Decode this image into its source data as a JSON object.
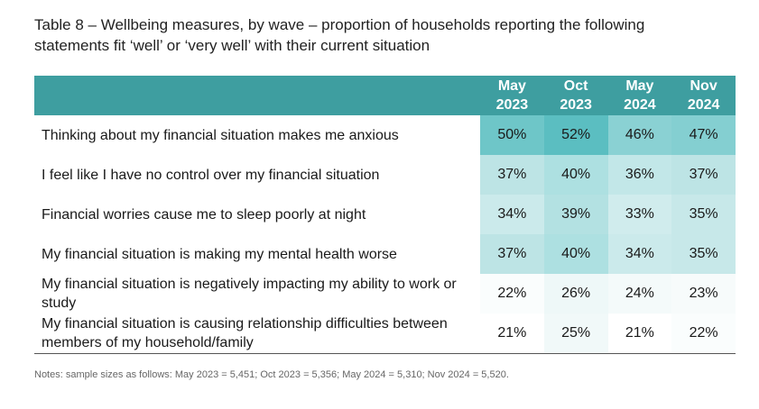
{
  "title": {
    "line1": "Table 8 – Wellbeing measures, by wave – proportion of households reporting the following",
    "line2": "statements fit ‘well’ or ‘very well’ with their current situation"
  },
  "table": {
    "header_color": "#3e9ea0",
    "columns": [
      {
        "month": "May",
        "year": "2023"
      },
      {
        "month": "Oct",
        "year": "2023"
      },
      {
        "month": "May",
        "year": "2024"
      },
      {
        "month": "Nov",
        "year": "2024"
      }
    ],
    "rows": [
      {
        "label": "Thinking about my financial situation makes me anxious",
        "values": [
          "50%",
          "52%",
          "46%",
          "47%"
        ],
        "colors": [
          "#6ec6c8",
          "#5bbec1",
          "#8ad1d3",
          "#84cfd1"
        ]
      },
      {
        "label": "I feel like I have no control over my financial situation",
        "values": [
          "37%",
          "40%",
          "36%",
          "37%"
        ],
        "colors": [
          "#bde4e5",
          "#ade0e1",
          "#c2e7e8",
          "#bde4e5"
        ]
      },
      {
        "label": "Financial worries cause me to sleep poorly at night",
        "values": [
          "34%",
          "39%",
          "33%",
          "35%"
        ],
        "colors": [
          "#cbeaeb",
          "#b3e1e2",
          "#d0eced",
          "#c7e8e9"
        ]
      },
      {
        "label": "My financial situation is making my mental health worse",
        "values": [
          "37%",
          "40%",
          "34%",
          "35%"
        ],
        "colors": [
          "#bde4e5",
          "#ade0e1",
          "#cbeaeb",
          "#c7e8e9"
        ]
      },
      {
        "label": "My financial situation is negatively impacting my ability to work or study",
        "values": [
          "22%",
          "26%",
          "24%",
          "23%"
        ],
        "colors": [
          "#fafdfd",
          "#eef8f8",
          "#f4fafa",
          "#f7fbfb"
        ]
      },
      {
        "label": "My financial situation is causing relationship difficulties between members of my household/family",
        "values": [
          "21%",
          "25%",
          "21%",
          "22%"
        ],
        "colors": [
          "#ffffff",
          "#f1f9f9",
          "#ffffff",
          "#fafdfd"
        ]
      }
    ]
  },
  "notes": "Notes: sample sizes as follows: May 2023 = 5,451; Oct 2023 = 5,356; May 2024 = 5,310; Nov 2024 = 5,520."
}
